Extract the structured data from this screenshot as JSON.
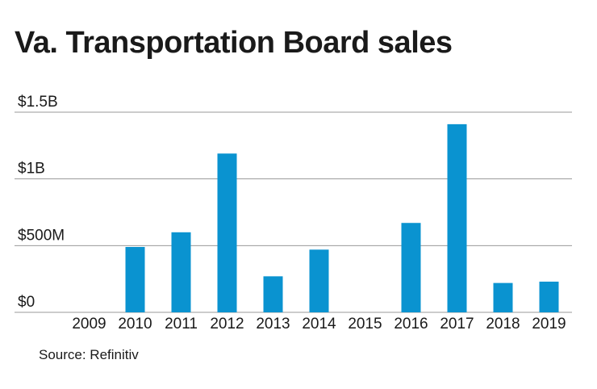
{
  "chart_data": {
    "type": "bar",
    "title": "Va. Transportation Board sales",
    "categories": [
      "2009",
      "2010",
      "2011",
      "2012",
      "2013",
      "2014",
      "2015",
      "2016",
      "2017",
      "2018",
      "2019"
    ],
    "values": [
      0,
      0.49,
      0.6,
      1.19,
      0.27,
      0.47,
      0,
      0.67,
      1.41,
      0.22,
      0.23
    ],
    "unit": "billions USD",
    "ylim": [
      0,
      1.5
    ],
    "yticks": [
      0,
      0.5,
      1,
      1.5
    ],
    "ytick_labels": [
      "$0",
      "$500M",
      "$1B",
      "$1.5B"
    ],
    "xlabel": "",
    "ylabel": "",
    "grid": true,
    "bar_color": "#0a93d0",
    "grid_color": "#9a9a9a",
    "source": "Source: Refinitiv"
  }
}
